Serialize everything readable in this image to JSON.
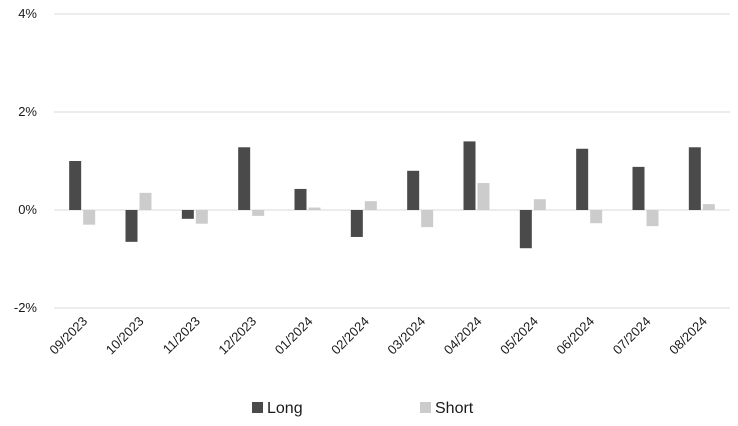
{
  "chart_data": {
    "type": "bar",
    "categories": [
      "09/2023",
      "10/2023",
      "11/2023",
      "12/2023",
      "01/2024",
      "02/2024",
      "03/2024",
      "04/2024",
      "05/2024",
      "06/2024",
      "07/2024",
      "08/2024"
    ],
    "series": [
      {
        "name": "Long",
        "color": "#4a4a4a",
        "values": [
          1.0,
          -0.65,
          -0.18,
          1.28,
          0.43,
          -0.55,
          0.8,
          1.4,
          -0.78,
          1.25,
          0.88,
          1.28
        ]
      },
      {
        "name": "Short",
        "color": "#cccccc",
        "values": [
          -0.3,
          0.35,
          -0.28,
          -0.12,
          0.05,
          0.18,
          -0.35,
          0.55,
          0.22,
          -0.27,
          -0.33,
          0.12
        ]
      }
    ],
    "yticks": [
      -2,
      0,
      2,
      4
    ],
    "ytick_labels": [
      "-2%",
      "0%",
      "2%",
      "4%"
    ],
    "ylim": [
      -2,
      4
    ],
    "grid": true,
    "legend_position": "bottom-center"
  }
}
